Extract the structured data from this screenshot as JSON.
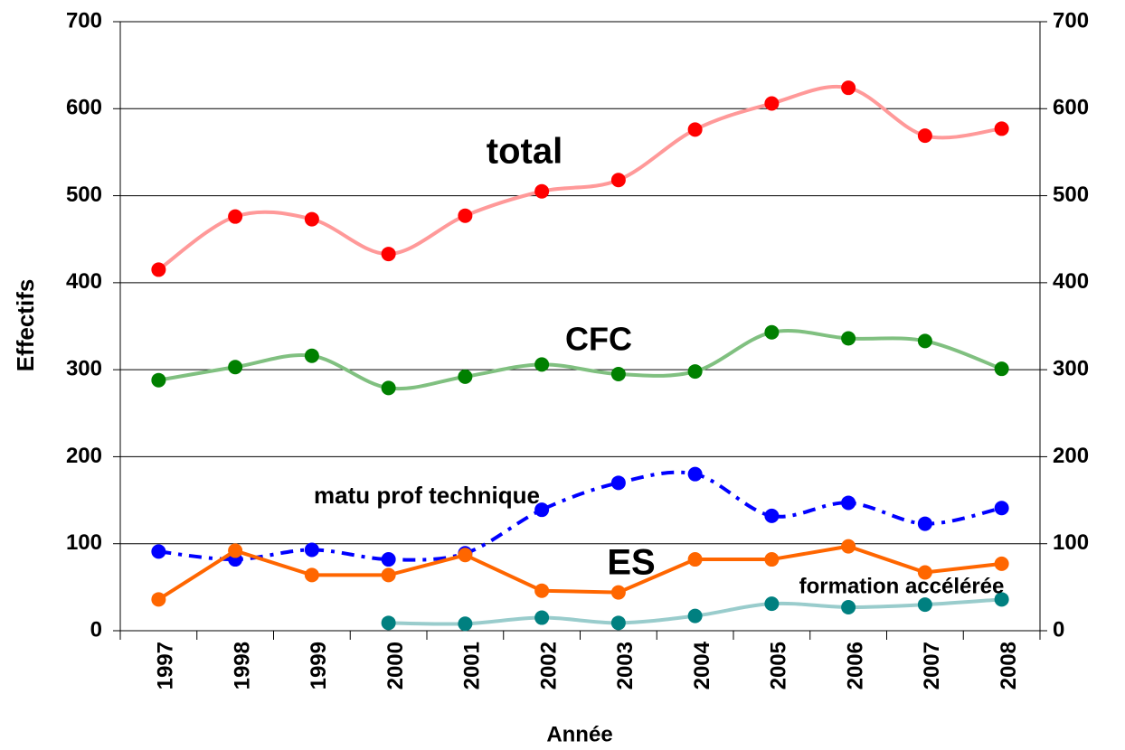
{
  "chart_data": {
    "type": "line",
    "x_label": "Année",
    "y_label": "Effectifs",
    "categories": [
      "1997",
      "1998",
      "1999",
      "2000",
      "2001",
      "2002",
      "2003",
      "2004",
      "2005",
      "2006",
      "2007",
      "2008"
    ],
    "series": [
      {
        "name": "total",
        "color": "#ff0000",
        "line_color": "#ff9999",
        "smooth": true,
        "dashed": false,
        "values": [
          415,
          476,
          473,
          433,
          477,
          505,
          518,
          576,
          606,
          624,
          569,
          577
        ]
      },
      {
        "name": "CFC",
        "color": "#008000",
        "line_color": "#80c080",
        "smooth": true,
        "dashed": false,
        "values": [
          288,
          303,
          316,
          279,
          292,
          306,
          295,
          298,
          343,
          336,
          333,
          301
        ]
      },
      {
        "name": "matu prof technique",
        "color": "#0000ff",
        "line_color": "#0000ff",
        "smooth": true,
        "dashed": true,
        "values": [
          91,
          82,
          93,
          82,
          89,
          139,
          170,
          180,
          132,
          147,
          123,
          141
        ]
      },
      {
        "name": "ES",
        "color": "#ff6600",
        "line_color": "#ff6600",
        "smooth": false,
        "dashed": false,
        "values": [
          36,
          92,
          64,
          64,
          87,
          46,
          44,
          82,
          82,
          97,
          67,
          77
        ]
      },
      {
        "name": "formation accélérée",
        "color": "#008080",
        "line_color": "#99cccc",
        "smooth": true,
        "dashed": false,
        "values": [
          null,
          null,
          null,
          9,
          8,
          15,
          9,
          17,
          31,
          27,
          30,
          36
        ]
      }
    ],
    "ylim": [
      0,
      700
    ],
    "yticks": [
      0,
      100,
      200,
      300,
      400,
      500,
      600,
      700
    ],
    "y2lim": [
      0,
      700
    ],
    "y2ticks": [
      0,
      100,
      200,
      300,
      400,
      500,
      600,
      700
    ],
    "grid": true
  }
}
